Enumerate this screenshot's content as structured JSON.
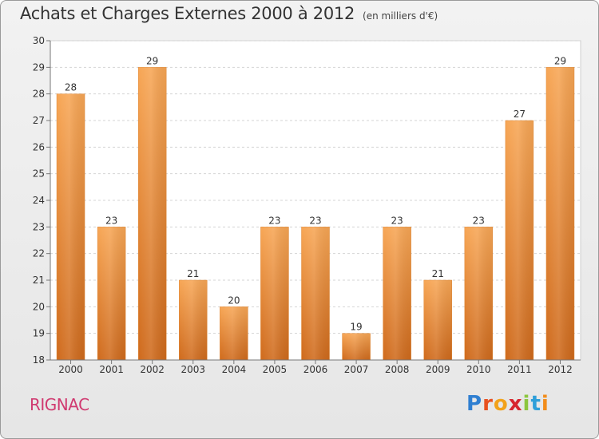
{
  "header": {
    "title": "Achats et Charges Externes 2000 à 2012",
    "subtitle": "(en milliers d'€)"
  },
  "footer": {
    "commune": "RIGNAC",
    "brand_letters": [
      {
        "ch": "P",
        "color": "#2f7fd1"
      },
      {
        "ch": "r",
        "color": "#e8501e"
      },
      {
        "ch": "o",
        "color": "#f2a21a"
      },
      {
        "ch": "x",
        "color": "#d7262e"
      },
      {
        "ch": "i",
        "color": "#8cc63e"
      },
      {
        "ch": "t",
        "color": "#2f9fd9"
      },
      {
        "ch": "i",
        "color": "#f28c1a"
      }
    ]
  },
  "chart_data": {
    "type": "bar",
    "title": "Achats et Charges Externes 2000 à 2012",
    "subtitle": "(en milliers d'€)",
    "categories": [
      "2000",
      "2001",
      "2002",
      "2003",
      "2004",
      "2005",
      "2006",
      "2007",
      "2008",
      "2009",
      "2010",
      "2011",
      "2012"
    ],
    "values": [
      28,
      23,
      29,
      21,
      20,
      23,
      23,
      19,
      23,
      21,
      23,
      27,
      29
    ],
    "ylim": [
      18,
      30
    ],
    "yticks": [
      18,
      19,
      20,
      21,
      22,
      23,
      24,
      25,
      26,
      27,
      28,
      29,
      30
    ],
    "grid": "horizontal dashed",
    "bar_color": "#f0983e",
    "xlabel": "",
    "ylabel": ""
  }
}
